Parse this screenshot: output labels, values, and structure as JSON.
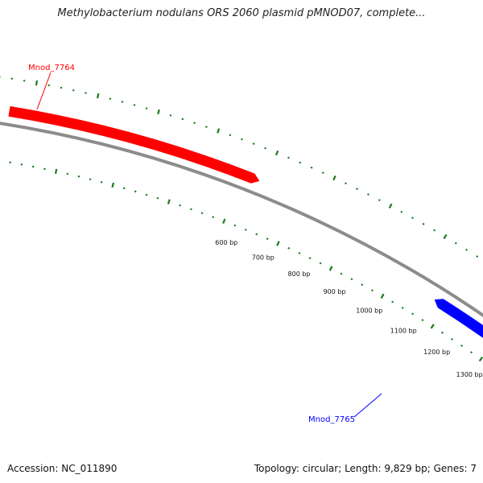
{
  "title": "Methylobacterium nodulans ORS 2060 plasmid pMNOD07, complete...",
  "accession": "Accession: NC_011890",
  "summary": "Topology: circular; Length: 9,829 bp; Genes: 7",
  "genes": [
    {
      "name": "Mnod_7764",
      "strand": "+",
      "color": "#ff0000",
      "start_bp": 0,
      "end_bp": 618
    },
    {
      "name": "Mnod_7765",
      "strand": "-",
      "color": "#0000ff",
      "start_bp": 1122,
      "end_bp": 1350
    }
  ],
  "ticks": [
    {
      "label": "600 bp",
      "bp": 600
    },
    {
      "label": "700 bp",
      "bp": 700
    },
    {
      "label": "800 bp",
      "bp": 800
    },
    {
      "label": "900 bp",
      "bp": 900
    },
    {
      "label": "1000 bp",
      "bp": 1000
    },
    {
      "label": "1100 bp",
      "bp": 1100
    },
    {
      "label": "1200 bp",
      "bp": 1200
    },
    {
      "label": "1300 bp",
      "bp": 1300
    }
  ],
  "colors": {
    "backbone": "#8c8c8c",
    "gc_ticks": "#1a7a1a"
  }
}
